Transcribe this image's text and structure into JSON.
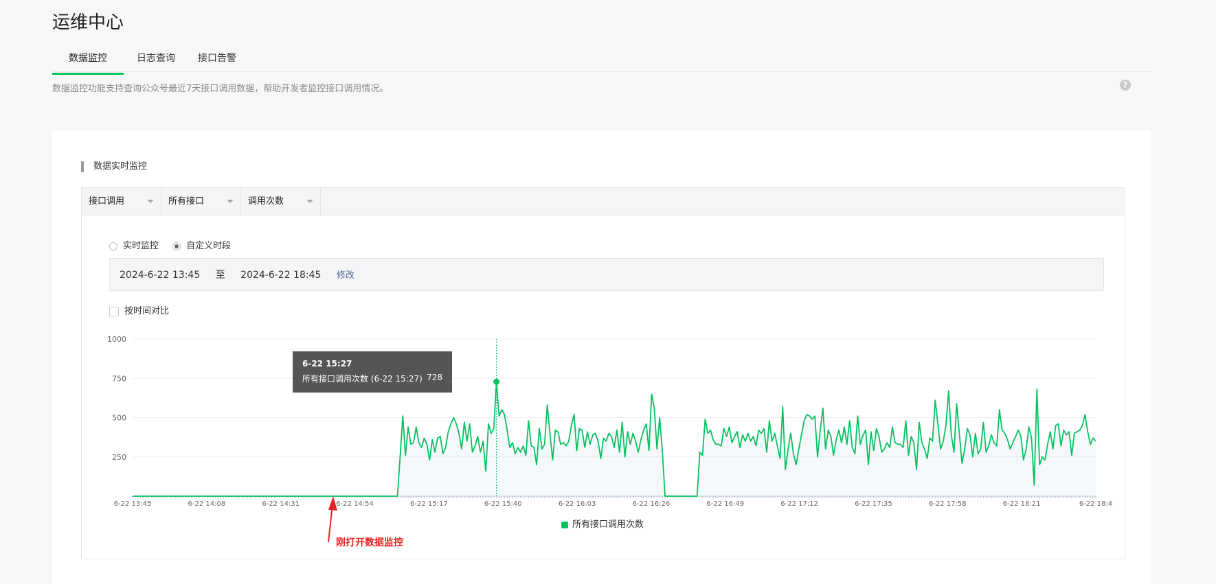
{
  "page": {
    "title": "运维中心"
  },
  "tabs": [
    {
      "label": "数据监控",
      "active": true
    },
    {
      "label": "日志查询",
      "active": false
    },
    {
      "label": "接口告警",
      "active": false
    }
  ],
  "description": "数据监控功能支持查询公众号最近7天接口调用数据，帮助开发者监控接口调用情况。",
  "help_icon": "question-mark-icon",
  "section": {
    "title": "数据实时监控"
  },
  "filters": [
    {
      "label": "接口调用"
    },
    {
      "label": "所有接口"
    },
    {
      "label": "调用次数"
    }
  ],
  "mode": {
    "options": [
      {
        "label": "实时监控",
        "selected": false
      },
      {
        "label": "自定义时段",
        "selected": true
      }
    ]
  },
  "range": {
    "start": "2024-6-22 13:45",
    "sep": "至",
    "end": "2024-6-22 18:45",
    "edit_label": "修改"
  },
  "compare": {
    "label": "按时间对比",
    "checked": false
  },
  "tooltip": {
    "title": "6-22 15:27",
    "series": "所有接口调用次数 (6-22 15:27)",
    "value": "728"
  },
  "annotation": "刚打开数据监控",
  "colors": {
    "accent": "#07c160",
    "annotation": "#e22222"
  },
  "chart_data": {
    "type": "line",
    "ylim": [
      0,
      1000
    ],
    "yticks": [
      250,
      500,
      750,
      1000
    ],
    "xticks": [
      "6-22 13:45",
      "6-22 14:08",
      "6-22 14:31",
      "6-22 14:54",
      "6-22 15:17",
      "6-22 15:40",
      "6-22 16:03",
      "6-22 16:26",
      "6-22 16:49",
      "6-22 17:12",
      "6-22 17:35",
      "6-22 17:58",
      "6-22 18:21",
      "6-22 18:4"
    ],
    "series": [
      {
        "name": "所有接口调用次数",
        "values": [
          0,
          0,
          0,
          0,
          0,
          0,
          0,
          0,
          0,
          0,
          0,
          0,
          0,
          0,
          0,
          0,
          0,
          0,
          0,
          0,
          0,
          0,
          0,
          0,
          0,
          0,
          0,
          0,
          0,
          0,
          0,
          0,
          0,
          0,
          0,
          0,
          0,
          0,
          0,
          0,
          0,
          0,
          0,
          0,
          0,
          0,
          0,
          0,
          0,
          0,
          0,
          0,
          0,
          0,
          0,
          0,
          0,
          0,
          0,
          0,
          0,
          0,
          0,
          0,
          0,
          0,
          0,
          0,
          0,
          0,
          0,
          0,
          0,
          0,
          0,
          0,
          0,
          0,
          0,
          0,
          0,
          0,
          0,
          0,
          0,
          0,
          0,
          0,
          0,
          0,
          0,
          0,
          0,
          0,
          0,
          0,
          0,
          0,
          0,
          0,
          250,
          510,
          260,
          440,
          330,
          340,
          440,
          340,
          310,
          370,
          330,
          230,
          360,
          280,
          370,
          380,
          270,
          310,
          410,
          460,
          500,
          460,
          400,
          300,
          470,
          350,
          460,
          280,
          320,
          380,
          280,
          350,
          160,
          460,
          400,
          430,
          728,
          510,
          550,
          520,
          420,
          310,
          340,
          270,
          310,
          280,
          320,
          260,
          480,
          320,
          310,
          200,
          430,
          300,
          330,
          580,
          400,
          230,
          420,
          410,
          330,
          340,
          320,
          350,
          450,
          520,
          290,
          430,
          420,
          310,
          410,
          330,
          390,
          400,
          350,
          240,
          370,
          350,
          400,
          380,
          310,
          420,
          280,
          470,
          250,
          410,
          330,
          400,
          350,
          280,
          360,
          420,
          460,
          290,
          650,
          560,
          300,
          500,
          290,
          0,
          0,
          0,
          0,
          0,
          0,
          0,
          0,
          0,
          0,
          0,
          0,
          0,
          280,
          260,
          490,
          400,
          420,
          360,
          330,
          330,
          320,
          430,
          380,
          440,
          340,
          380,
          410,
          310,
          390,
          350,
          400,
          350,
          380,
          320,
          420,
          400,
          430,
          280,
          480,
          350,
          400,
          320,
          240,
          570,
          170,
          300,
          400,
          270,
          200,
          300,
          390,
          480,
          520,
          510,
          490,
          510,
          250,
          420,
          560,
          300,
          420,
          380,
          260,
          360,
          420,
          340,
          440,
          330,
          480,
          310,
          270,
          510,
          330,
          390,
          420,
          200,
          410,
          290,
          430,
          380,
          280,
          300,
          340,
          310,
          440,
          340,
          330,
          330,
          310,
          480,
          260,
          380,
          340,
          170,
          470,
          340,
          300,
          240,
          370,
          350,
          610,
          460,
          300,
          350,
          450,
          670,
          390,
          280,
          590,
          400,
          210,
          300,
          430,
          390,
          250,
          400,
          270,
          300,
          470,
          280,
          320,
          390,
          340,
          320,
          550,
          420,
          400,
          360,
          300,
          340,
          380,
          420,
          380,
          230,
          300,
          440,
          370,
          70,
          680,
          200,
          250,
          230,
          330,
          410,
          300,
          450,
          460,
          320,
          420,
          390,
          410,
          260,
          400,
          410,
          420,
          450,
          520,
          410,
          330,
          370,
          350
        ]
      }
    ],
    "highlight": {
      "label": "6-22 15:27",
      "value": 728
    },
    "legend": "bottom-center"
  }
}
